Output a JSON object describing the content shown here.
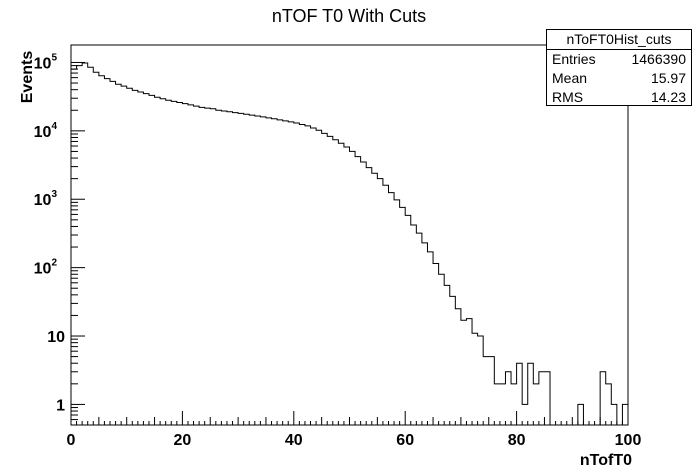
{
  "chart_data": {
    "type": "histogram",
    "title": "nTOF T0 With Cuts",
    "xlabel": "nTofT0",
    "ylabel": "Events",
    "xlim": [
      0,
      100
    ],
    "ylim": [
      0.5,
      180000
    ],
    "yscale": "log",
    "bin_width": 1,
    "x_ticks": [
      "0",
      "20",
      "40",
      "60",
      "80",
      "100"
    ],
    "y_ticks": [
      {
        "value": 1,
        "label": "1"
      },
      {
        "value": 10,
        "label": "10"
      },
      {
        "value": 100,
        "label": "10",
        "exp": "2"
      },
      {
        "value": 1000,
        "label": "10",
        "exp": "3"
      },
      {
        "value": 10000,
        "label": "10",
        "exp": "4"
      },
      {
        "value": 100000,
        "label": "10",
        "exp": "5"
      }
    ],
    "bins": [
      {
        "x": 0,
        "y": 80000
      },
      {
        "x": 1,
        "y": 90000
      },
      {
        "x": 2,
        "y": 98000
      },
      {
        "x": 3,
        "y": 85000
      },
      {
        "x": 4,
        "y": 72000
      },
      {
        "x": 5,
        "y": 64000
      },
      {
        "x": 6,
        "y": 58000
      },
      {
        "x": 7,
        "y": 53000
      },
      {
        "x": 8,
        "y": 48000
      },
      {
        "x": 9,
        "y": 45000
      },
      {
        "x": 10,
        "y": 42000
      },
      {
        "x": 11,
        "y": 39000
      },
      {
        "x": 12,
        "y": 37000
      },
      {
        "x": 13,
        "y": 35000
      },
      {
        "x": 14,
        "y": 33000
      },
      {
        "x": 15,
        "y": 31000
      },
      {
        "x": 16,
        "y": 29500
      },
      {
        "x": 17,
        "y": 28000
      },
      {
        "x": 18,
        "y": 27000
      },
      {
        "x": 19,
        "y": 26000
      },
      {
        "x": 20,
        "y": 25000
      },
      {
        "x": 21,
        "y": 24000
      },
      {
        "x": 22,
        "y": 23000
      },
      {
        "x": 23,
        "y": 22000
      },
      {
        "x": 24,
        "y": 21500
      },
      {
        "x": 25,
        "y": 21000
      },
      {
        "x": 26,
        "y": 20000
      },
      {
        "x": 27,
        "y": 19500
      },
      {
        "x": 28,
        "y": 19000
      },
      {
        "x": 29,
        "y": 18500
      },
      {
        "x": 30,
        "y": 18000
      },
      {
        "x": 31,
        "y": 17500
      },
      {
        "x": 32,
        "y": 17000
      },
      {
        "x": 33,
        "y": 16500
      },
      {
        "x": 34,
        "y": 16000
      },
      {
        "x": 35,
        "y": 15500
      },
      {
        "x": 36,
        "y": 15000
      },
      {
        "x": 37,
        "y": 14500
      },
      {
        "x": 38,
        "y": 14000
      },
      {
        "x": 39,
        "y": 13500
      },
      {
        "x": 40,
        "y": 13000
      },
      {
        "x": 41,
        "y": 12400
      },
      {
        "x": 42,
        "y": 11800
      },
      {
        "x": 43,
        "y": 11000
      },
      {
        "x": 44,
        "y": 10200
      },
      {
        "x": 45,
        "y": 9200
      },
      {
        "x": 46,
        "y": 8300
      },
      {
        "x": 47,
        "y": 7400
      },
      {
        "x": 48,
        "y": 6600
      },
      {
        "x": 49,
        "y": 5800
      },
      {
        "x": 50,
        "y": 5000
      },
      {
        "x": 51,
        "y": 4200
      },
      {
        "x": 52,
        "y": 3500
      },
      {
        "x": 53,
        "y": 2900
      },
      {
        "x": 54,
        "y": 2400
      },
      {
        "x": 55,
        "y": 2000
      },
      {
        "x": 56,
        "y": 1600
      },
      {
        "x": 57,
        "y": 1250
      },
      {
        "x": 58,
        "y": 980
      },
      {
        "x": 59,
        "y": 760
      },
      {
        "x": 60,
        "y": 580
      },
      {
        "x": 61,
        "y": 420
      },
      {
        "x": 62,
        "y": 320
      },
      {
        "x": 63,
        "y": 230
      },
      {
        "x": 64,
        "y": 170
      },
      {
        "x": 65,
        "y": 115
      },
      {
        "x": 66,
        "y": 80
      },
      {
        "x": 67,
        "y": 55
      },
      {
        "x": 68,
        "y": 38
      },
      {
        "x": 69,
        "y": 25
      },
      {
        "x": 70,
        "y": 17
      },
      {
        "x": 71,
        "y": 18
      },
      {
        "x": 72,
        "y": 11
      },
      {
        "x": 73,
        "y": 10
      },
      {
        "x": 74,
        "y": 5
      },
      {
        "x": 75,
        "y": 5
      },
      {
        "x": 76,
        "y": 2
      },
      {
        "x": 77,
        "y": 2
      },
      {
        "x": 78,
        "y": 3
      },
      {
        "x": 79,
        "y": 2
      },
      {
        "x": 80,
        "y": 4
      },
      {
        "x": 81,
        "y": 1
      },
      {
        "x": 82,
        "y": 4
      },
      {
        "x": 83,
        "y": 2
      },
      {
        "x": 84,
        "y": 3
      },
      {
        "x": 85,
        "y": 3
      },
      {
        "x": 86,
        "y": 0
      },
      {
        "x": 87,
        "y": 0
      },
      {
        "x": 88,
        "y": 0
      },
      {
        "x": 89,
        "y": 0
      },
      {
        "x": 90,
        "y": 0
      },
      {
        "x": 91,
        "y": 1
      },
      {
        "x": 92,
        "y": 0
      },
      {
        "x": 93,
        "y": 0
      },
      {
        "x": 94,
        "y": 0
      },
      {
        "x": 95,
        "y": 3
      },
      {
        "x": 96,
        "y": 2
      },
      {
        "x": 97,
        "y": 1
      },
      {
        "x": 98,
        "y": 0
      },
      {
        "x": 99,
        "y": 1
      }
    ],
    "stats": {
      "name": "nToFT0Hist_cuts",
      "entries_label": "Entries",
      "entries": "1466390",
      "mean_label": "Mean",
      "mean": "15.97",
      "rms_label": "RMS",
      "rms": "14.23"
    }
  }
}
